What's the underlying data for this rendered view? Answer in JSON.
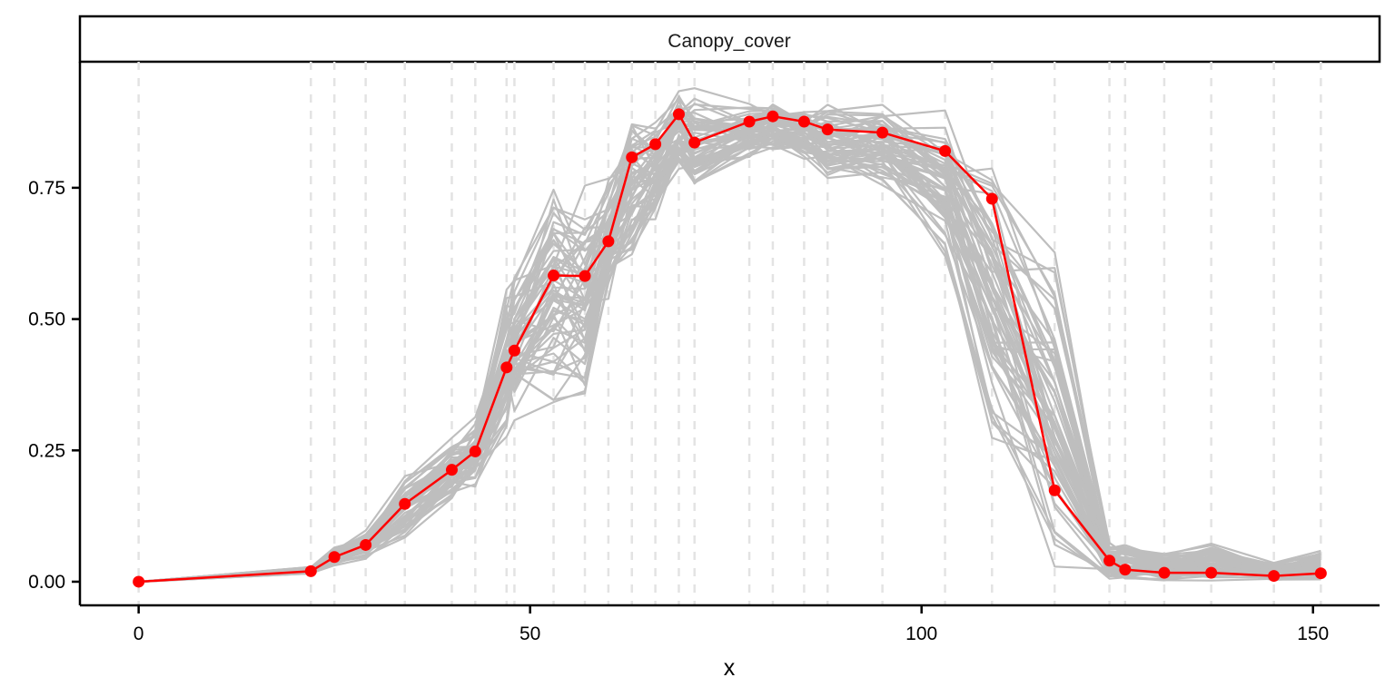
{
  "chart_data": {
    "type": "line",
    "facet_label": "Canopy_cover",
    "xlabel": "x",
    "ylabel": "",
    "xlim": [
      -7.5,
      158.5
    ],
    "ylim": [
      -0.045,
      0.99
    ],
    "x_ticks": [
      0,
      50,
      100,
      150
    ],
    "x_tick_labels": [
      "0",
      "50",
      "100",
      "150"
    ],
    "y_ticks": [
      0,
      0.25,
      0.5,
      0.75
    ],
    "y_tick_labels": [
      "0.00",
      "0.25",
      "0.50",
      "0.75"
    ],
    "grid": "vertical dashed lines at observation dates",
    "vlines": [
      0,
      22,
      25,
      29,
      34,
      40,
      43,
      47,
      48,
      53,
      57,
      60,
      63,
      66,
      69,
      71,
      78,
      81,
      85,
      88,
      95,
      103,
      109,
      117,
      124,
      126,
      131,
      137,
      145,
      151
    ],
    "series": [
      {
        "color": "#ff0000",
        "x": [
          0,
          22,
          25,
          29,
          34,
          40,
          43,
          47,
          48,
          53,
          57,
          60,
          63,
          66,
          69,
          71,
          78,
          81,
          85,
          88,
          95,
          103,
          109,
          117,
          124,
          126,
          131,
          137,
          145,
          151
        ],
        "y": [
          0.0,
          0.02,
          0.047,
          0.07,
          0.148,
          0.213,
          0.248,
          0.408,
          0.44,
          0.583,
          0.582,
          0.648,
          0.808,
          0.833,
          0.89,
          0.836,
          0.876,
          0.886,
          0.876,
          0.861,
          0.855,
          0.82,
          0.729,
          0.174,
          0.04,
          0.023,
          0.017,
          0.017,
          0.011,
          0.016
        ]
      }
    ],
    "background_series": {
      "color": "#bebebe",
      "count": 60,
      "description_envelope_lower": [
        0.0,
        0.015,
        0.03,
        0.04,
        0.08,
        0.15,
        0.17,
        0.27,
        0.3,
        0.32,
        0.34,
        0.5,
        0.6,
        0.68,
        0.78,
        0.73,
        0.8,
        0.82,
        0.8,
        0.76,
        0.75,
        0.6,
        0.23,
        0.0,
        0.0,
        0.0,
        0.0,
        0.0,
        0.0,
        0.0
      ],
      "description_envelope_upper": [
        0.0,
        0.03,
        0.07,
        0.1,
        0.21,
        0.28,
        0.32,
        0.58,
        0.6,
        0.8,
        0.77,
        0.81,
        0.93,
        0.9,
        0.94,
        0.95,
        0.92,
        0.92,
        0.91,
        0.92,
        0.92,
        0.91,
        0.92,
        0.68,
        0.08,
        0.08,
        0.06,
        0.075,
        0.04,
        0.065
      ]
    }
  }
}
